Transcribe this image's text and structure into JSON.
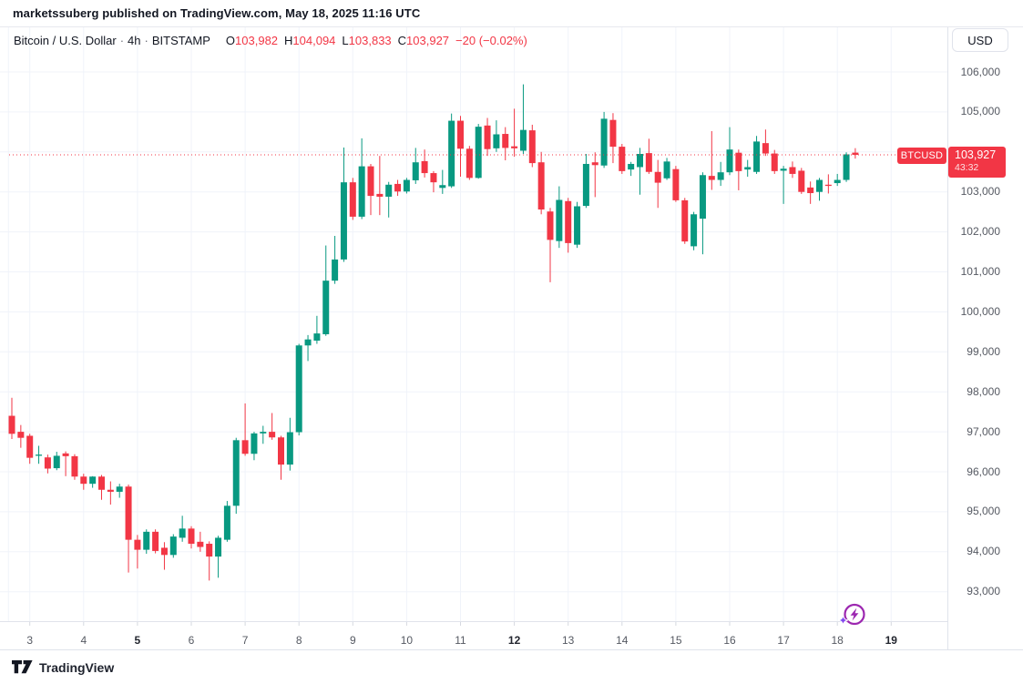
{
  "header": {
    "attribution": "marketssuberg published on TradingView.com, May 18, 2025 11:16 UTC"
  },
  "legend": {
    "symbol_name": "Bitcoin / U.S. Dollar",
    "separator": "·",
    "interval": "4h",
    "exchange": "BITSTAMP",
    "o_label": "O",
    "o_value": "103,982",
    "h_label": "H",
    "h_value": "104,094",
    "l_label": "L",
    "l_value": "103,833",
    "c_label": "C",
    "c_value": "103,927",
    "change": "−20 (−0.02%)"
  },
  "price_axis": {
    "currency": "USD",
    "labels": [
      {
        "text": "106,000",
        "value": 106000
      },
      {
        "text": "105,000",
        "value": 105000
      },
      {
        "text": "104,000",
        "value": 104000
      },
      {
        "text": "103,000",
        "value": 103000
      },
      {
        "text": "102,000",
        "value": 102000
      },
      {
        "text": "101,000",
        "value": 101000
      },
      {
        "text": "100,000",
        "value": 100000
      },
      {
        "text": "99,000",
        "value": 99000
      },
      {
        "text": "98,000",
        "value": 98000
      },
      {
        "text": "97,000",
        "value": 97000
      },
      {
        "text": "96,000",
        "value": 96000
      },
      {
        "text": "95,000",
        "value": 95000
      },
      {
        "text": "94,000",
        "value": 94000
      },
      {
        "text": "93,000",
        "value": 93000
      }
    ]
  },
  "time_axis": {
    "labels": [
      {
        "text": "3",
        "bold": false
      },
      {
        "text": "4",
        "bold": false
      },
      {
        "text": "5",
        "bold": true
      },
      {
        "text": "6",
        "bold": false
      },
      {
        "text": "7",
        "bold": false
      },
      {
        "text": "8",
        "bold": false
      },
      {
        "text": "9",
        "bold": false
      },
      {
        "text": "10",
        "bold": false
      },
      {
        "text": "11",
        "bold": false
      },
      {
        "text": "12",
        "bold": true
      },
      {
        "text": "13",
        "bold": false
      },
      {
        "text": "14",
        "bold": false
      },
      {
        "text": "15",
        "bold": false
      },
      {
        "text": "16",
        "bold": false
      },
      {
        "text": "17",
        "bold": false
      },
      {
        "text": "18",
        "bold": false
      },
      {
        "text": "19",
        "bold": true
      }
    ]
  },
  "price_marker": {
    "symbol": "BTCUSD",
    "price": "103,927",
    "countdown": "43:32"
  },
  "footer": {
    "brand": "TradingView"
  },
  "colors": {
    "up": "#089981",
    "down": "#f23645",
    "grid": "#f0f3fa",
    "axis_border": "#e0e3eb",
    "tick": "#d6d9e0",
    "accent_purple": "#9c27b0",
    "sparkle_from": "#5b63f5",
    "sparkle_to": "#a62ee8"
  },
  "chart_data": {
    "type": "candlestick",
    "symbol": "BTCUSD",
    "exchange": "BITSTAMP",
    "interval": "4h",
    "first_candle_time": "2025-05-02 16:00 UTC",
    "last_candle_time": "2025-05-18 08:00 UTC",
    "current_price": 103927,
    "current_price_direction": "down",
    "countdown": "43:32",
    "ylabel": "USD",
    "y_axis": {
      "min": 93000,
      "max": 106000,
      "step": 1000
    },
    "x_axis_day_labels": [
      3,
      4,
      5,
      6,
      7,
      8,
      9,
      10,
      11,
      12,
      13,
      14,
      15,
      16,
      17,
      18,
      19
    ],
    "candles_ohlc": [
      [
        97400,
        97850,
        96820,
        96950
      ],
      [
        97000,
        97170,
        96600,
        96850
      ],
      [
        96900,
        96950,
        96200,
        96350
      ],
      [
        96400,
        96650,
        96200,
        96430
      ],
      [
        96360,
        96430,
        95960,
        96080
      ],
      [
        96090,
        96500,
        96040,
        96400
      ],
      [
        96460,
        96510,
        95890,
        96390
      ],
      [
        96390,
        96440,
        95800,
        95880
      ],
      [
        95880,
        95950,
        95550,
        95700
      ],
      [
        95700,
        95890,
        95600,
        95880
      ],
      [
        95880,
        95920,
        95300,
        95550
      ],
      [
        95550,
        95760,
        95180,
        95500
      ],
      [
        95500,
        95700,
        95350,
        95630
      ],
      [
        95630,
        95680,
        93480,
        94300
      ],
      [
        94300,
        94420,
        93580,
        94050
      ],
      [
        94050,
        94560,
        93950,
        94500
      ],
      [
        94500,
        94560,
        93960,
        94020
      ],
      [
        94100,
        94240,
        93550,
        93920
      ],
      [
        93920,
        94440,
        93850,
        94380
      ],
      [
        94350,
        94900,
        94250,
        94580
      ],
      [
        94580,
        94640,
        94080,
        94200
      ],
      [
        94250,
        94500,
        94000,
        94120
      ],
      [
        94200,
        94260,
        93280,
        93880
      ],
      [
        93880,
        94400,
        93350,
        94350
      ],
      [
        94300,
        95270,
        94250,
        95150
      ],
      [
        95150,
        96850,
        94950,
        96790
      ],
      [
        96790,
        97710,
        96400,
        96450
      ],
      [
        96450,
        97000,
        96290,
        96960
      ],
      [
        96960,
        97150,
        96700,
        97000
      ],
      [
        97000,
        97470,
        96800,
        96860
      ],
      [
        96860,
        96900,
        95800,
        96180
      ],
      [
        96180,
        97350,
        96030,
        96990
      ],
      [
        96990,
        99200,
        96910,
        99160
      ],
      [
        99160,
        99420,
        98770,
        99310
      ],
      [
        99280,
        99900,
        99200,
        99460
      ],
      [
        99440,
        101660,
        99400,
        100780
      ],
      [
        100780,
        101900,
        100700,
        101310
      ],
      [
        101310,
        104110,
        101250,
        103240
      ],
      [
        103240,
        103350,
        102300,
        102380
      ],
      [
        102380,
        104340,
        102320,
        103640
      ],
      [
        103640,
        103700,
        102420,
        102900
      ],
      [
        102950,
        103900,
        102420,
        102880
      ],
      [
        102880,
        103250,
        102360,
        103180
      ],
      [
        103200,
        103300,
        102900,
        103010
      ],
      [
        103010,
        103350,
        102960,
        103300
      ],
      [
        103290,
        104100,
        103200,
        103740
      ],
      [
        103770,
        104060,
        103360,
        103470
      ],
      [
        103470,
        103520,
        102990,
        103240
      ],
      [
        103100,
        103550,
        102950,
        103170
      ],
      [
        103140,
        104960,
        103100,
        104780
      ],
      [
        104780,
        104900,
        103380,
        104080
      ],
      [
        104080,
        104150,
        103300,
        103350
      ],
      [
        103350,
        104700,
        103330,
        104630
      ],
      [
        104660,
        104850,
        103900,
        104070
      ],
      [
        104090,
        104790,
        104000,
        104440
      ],
      [
        104450,
        104620,
        103790,
        104100
      ],
      [
        104140,
        105080,
        103880,
        104090
      ],
      [
        104030,
        105690,
        103950,
        104550
      ],
      [
        104540,
        104680,
        103620,
        103720
      ],
      [
        103740,
        104000,
        102440,
        102560
      ],
      [
        102510,
        102600,
        100740,
        101800
      ],
      [
        101770,
        103140,
        101600,
        102800
      ],
      [
        102770,
        102850,
        101480,
        101720
      ],
      [
        101680,
        102750,
        101600,
        102640
      ],
      [
        102650,
        103950,
        102600,
        103700
      ],
      [
        103740,
        103990,
        102870,
        103670
      ],
      [
        103660,
        105000,
        103600,
        104830
      ],
      [
        104800,
        104970,
        103720,
        104130
      ],
      [
        104130,
        104200,
        103450,
        103520
      ],
      [
        103560,
        103750,
        103400,
        103700
      ],
      [
        103620,
        104100,
        102930,
        103950
      ],
      [
        103970,
        104330,
        103450,
        103500
      ],
      [
        103500,
        103800,
        102600,
        103230
      ],
      [
        103340,
        103850,
        103300,
        103760
      ],
      [
        103570,
        103650,
        102750,
        102790
      ],
      [
        102790,
        102850,
        101700,
        101760
      ],
      [
        101640,
        102500,
        101540,
        102440
      ],
      [
        102330,
        103490,
        101440,
        103420
      ],
      [
        103400,
        104520,
        103050,
        103300
      ],
      [
        103300,
        103750,
        103150,
        103490
      ],
      [
        103490,
        104620,
        103420,
        104060
      ],
      [
        103980,
        104060,
        103040,
        103520
      ],
      [
        103560,
        103800,
        103380,
        103620
      ],
      [
        103500,
        104400,
        103450,
        104260
      ],
      [
        104220,
        104560,
        103900,
        103960
      ],
      [
        103960,
        104050,
        103450,
        103520
      ],
      [
        103530,
        103650,
        102700,
        103580
      ],
      [
        103620,
        103760,
        103350,
        103450
      ],
      [
        103530,
        103600,
        102950,
        103000
      ],
      [
        103110,
        103260,
        102700,
        102970
      ],
      [
        103000,
        103350,
        102780,
        103300
      ],
      [
        103180,
        103440,
        102960,
        103150
      ],
      [
        103220,
        103450,
        103150,
        103300
      ],
      [
        103300,
        103990,
        103250,
        103940
      ],
      [
        103982,
        104094,
        103833,
        103927
      ]
    ]
  }
}
